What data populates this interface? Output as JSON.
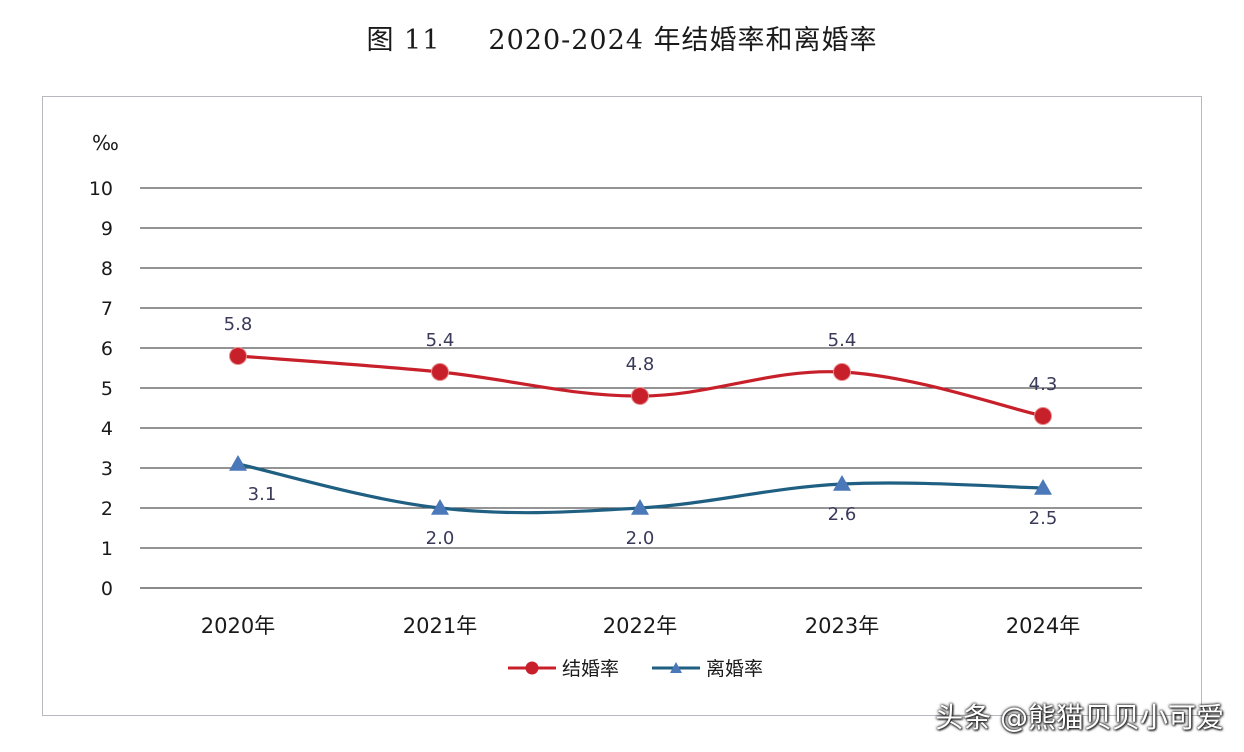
{
  "figure": {
    "number": "图 11",
    "title": "2020-2024 年结婚率和离婚率"
  },
  "watermark": "头条 @熊猫贝贝小可爱",
  "chart_data": {
    "type": "line",
    "ylabel": "‰",
    "ylim": [
      0,
      10
    ],
    "yticks": [
      "0",
      "1",
      "2",
      "3",
      "4",
      "5",
      "6",
      "7",
      "8",
      "9",
      "10"
    ],
    "categories": [
      "2020年",
      "2021年",
      "2022年",
      "2023年",
      "2024年"
    ],
    "grid": true,
    "legend_position": "bottom-center",
    "series": [
      {
        "name": "结婚率",
        "values": [
          5.8,
          5.4,
          4.8,
          5.4,
          4.3
        ],
        "labels": [
          "5.8",
          "5.4",
          "4.8",
          "5.4",
          "4.3"
        ],
        "color": "#c8202a",
        "marker": "circle",
        "label_position": "above"
      },
      {
        "name": "离婚率",
        "values": [
          3.1,
          2.0,
          2.0,
          2.6,
          2.5
        ],
        "labels": [
          "3.1",
          "2.0",
          "2.0",
          "2.6",
          "2.5"
        ],
        "color": "#1f5f82",
        "marker_color": "#4a78b8",
        "marker": "triangle",
        "label_position": "below"
      }
    ]
  }
}
